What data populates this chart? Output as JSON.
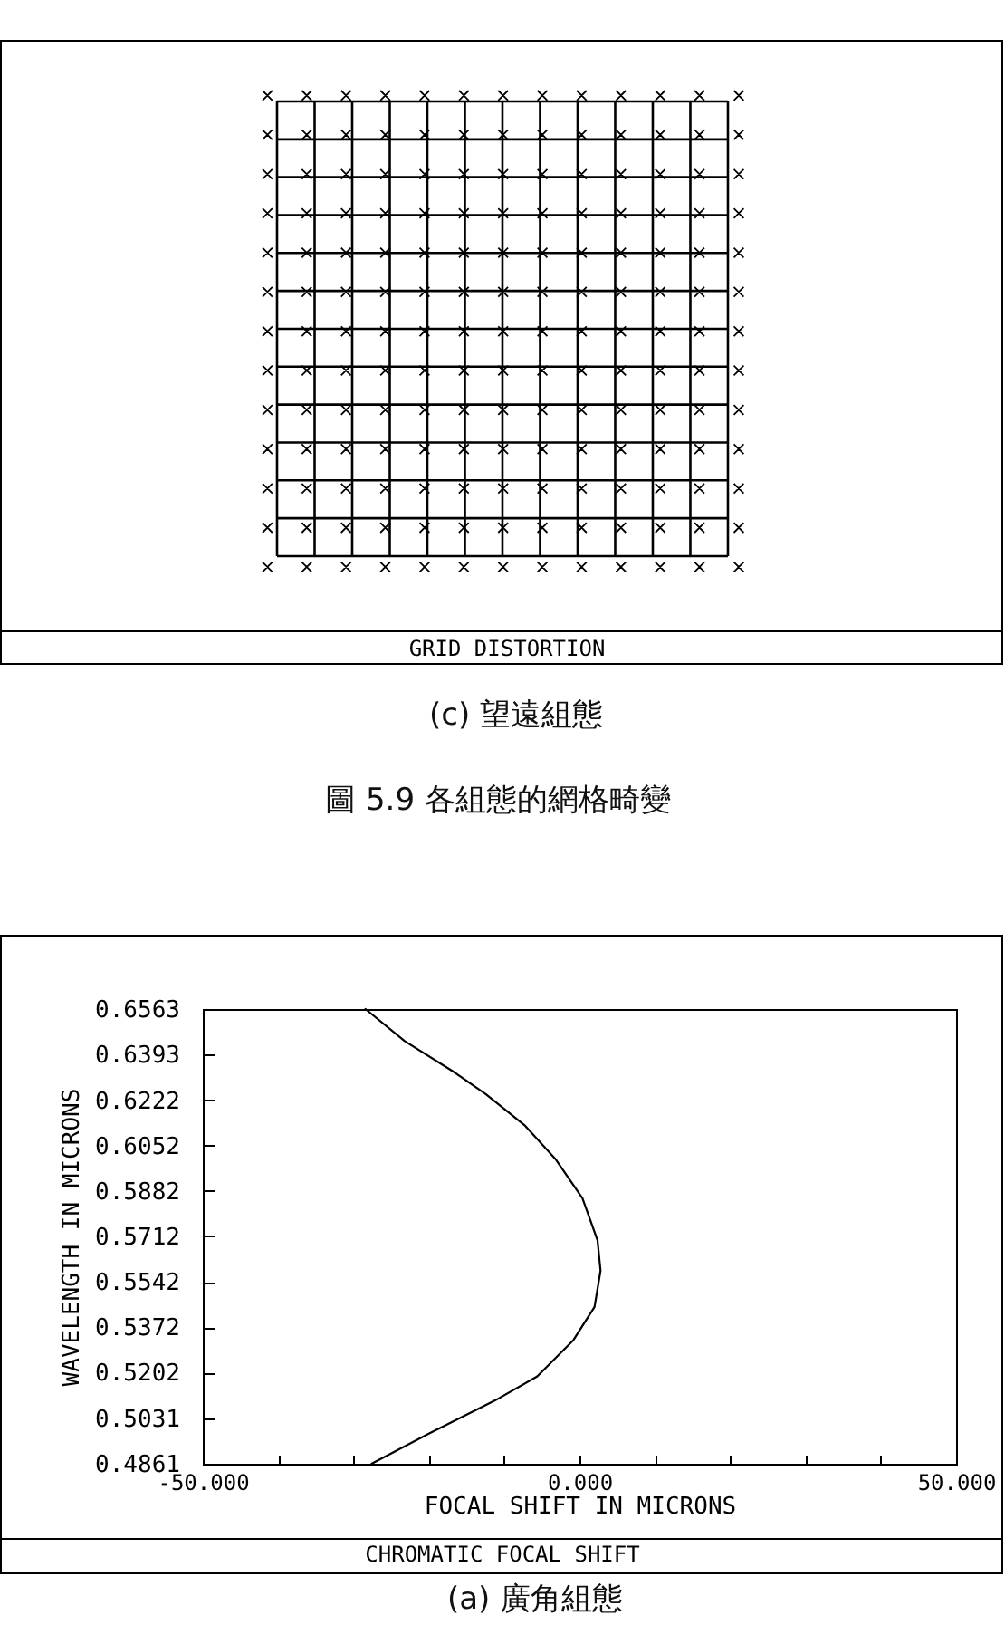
{
  "chart_data": [
    {
      "type": "other",
      "title": "GRID DISTORTION",
      "annotations": [
        "(c) 望遠組態",
        "圖 5.9 各組態的網格畸變"
      ]
    },
    {
      "type": "line",
      "title": "CHROMATIC FOCAL SHIFT",
      "xlabel": "FOCAL SHIFT IN MICRONS",
      "ylabel": "WAVELENGTH IN MICRONS",
      "annotations": [
        "(a) 廣角組態"
      ],
      "xlim": [
        -50,
        50
      ],
      "xticks": [
        {
          "value": -50,
          "label": "-50.000"
        },
        {
          "value": -40,
          "label": null
        },
        {
          "value": -30,
          "label": null
        },
        {
          "value": -20,
          "label": null
        },
        {
          "value": -10,
          "label": null
        },
        {
          "value": 0,
          "label": "0.000"
        },
        {
          "value": 10,
          "label": null
        },
        {
          "value": 20,
          "label": null
        },
        {
          "value": 30,
          "label": null
        },
        {
          "value": 40,
          "label": null
        },
        {
          "value": 50,
          "label": "50.000"
        }
      ],
      "ylim": [
        0.4861,
        0.6563
      ],
      "yticks": [
        0.4861,
        0.5031,
        0.5202,
        0.5372,
        0.5542,
        0.5712,
        0.5882,
        0.6052,
        0.6222,
        0.6393,
        0.6563
      ],
      "series": [
        {
          "color": "#000000",
          "x": [
            -28.4,
            -23.2,
            -16.8,
            -12.4,
            -7.2,
            -3.2,
            0.4,
            2.4,
            2.8,
            2.0,
            -0.8,
            -5.6,
            -11.2,
            -20.0,
            -27.6
          ],
          "values": [
            0.6563,
            0.6443,
            0.633,
            0.6244,
            0.6126,
            0.6002,
            0.5855,
            0.5697,
            0.5584,
            0.5448,
            0.5324,
            0.5188,
            0.5098,
            0.4974,
            0.4861
          ]
        }
      ]
    }
  ]
}
